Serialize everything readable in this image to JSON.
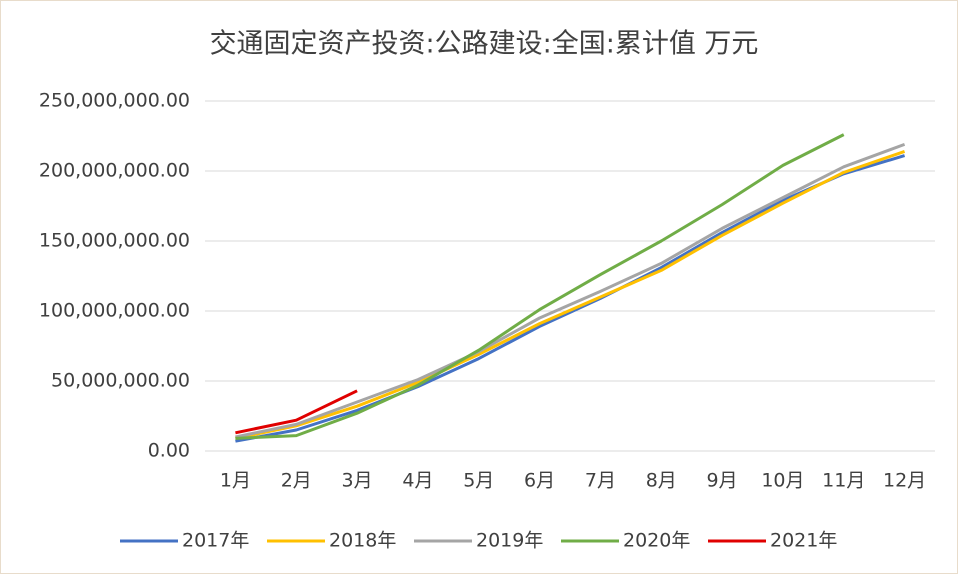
{
  "chart_data": {
    "type": "line",
    "title": "交通固定资产投资:公路建设:全国:累计值 万元",
    "categories": [
      "1月",
      "2月",
      "3月",
      "4月",
      "5月",
      "6月",
      "7月",
      "8月",
      "9月",
      "10月",
      "11月",
      "12月"
    ],
    "series": [
      {
        "name": "2017年",
        "color": "#4472c4",
        "values": [
          7000000,
          15000000,
          29000000,
          46000000,
          66000000,
          89000000,
          109000000,
          131000000,
          156000000,
          179000000,
          198000000,
          211000000
        ]
      },
      {
        "name": "2018年",
        "color": "#ffc000",
        "values": [
          9000000,
          18000000,
          32000000,
          49000000,
          69000000,
          91000000,
          110000000,
          129000000,
          154000000,
          177000000,
          199000000,
          214000000
        ]
      },
      {
        "name": "2019年",
        "color": "#a5a5a5",
        "values": [
          10000000,
          19000000,
          35000000,
          51000000,
          71000000,
          95000000,
          114000000,
          134000000,
          159000000,
          181000000,
          203000000,
          219000000
        ]
      },
      {
        "name": "2020年",
        "color": "#70ad47",
        "values": [
          9000000,
          11000000,
          27000000,
          47000000,
          72000000,
          101000000,
          126000000,
          150000000,
          176000000,
          204000000,
          226000000,
          null
        ]
      },
      {
        "name": "2021年",
        "color": "#e00000",
        "values": [
          13000000,
          22000000,
          43000000,
          null,
          null,
          null,
          null,
          null,
          null,
          null,
          null,
          null
        ]
      }
    ],
    "ylim": [
      0,
      250000000
    ],
    "yticks": [
      {
        "value": 0,
        "label": "0.00"
      },
      {
        "value": 50000000,
        "label": "50,000,000.00"
      },
      {
        "value": 100000000,
        "label": "100,000,000.00"
      },
      {
        "value": 150000000,
        "label": "150,000,000.00"
      },
      {
        "value": 200000000,
        "label": "200,000,000.00"
      },
      {
        "value": 250000000,
        "label": "250,000,000.00"
      }
    ],
    "grid": true,
    "legend": "bottom"
  }
}
